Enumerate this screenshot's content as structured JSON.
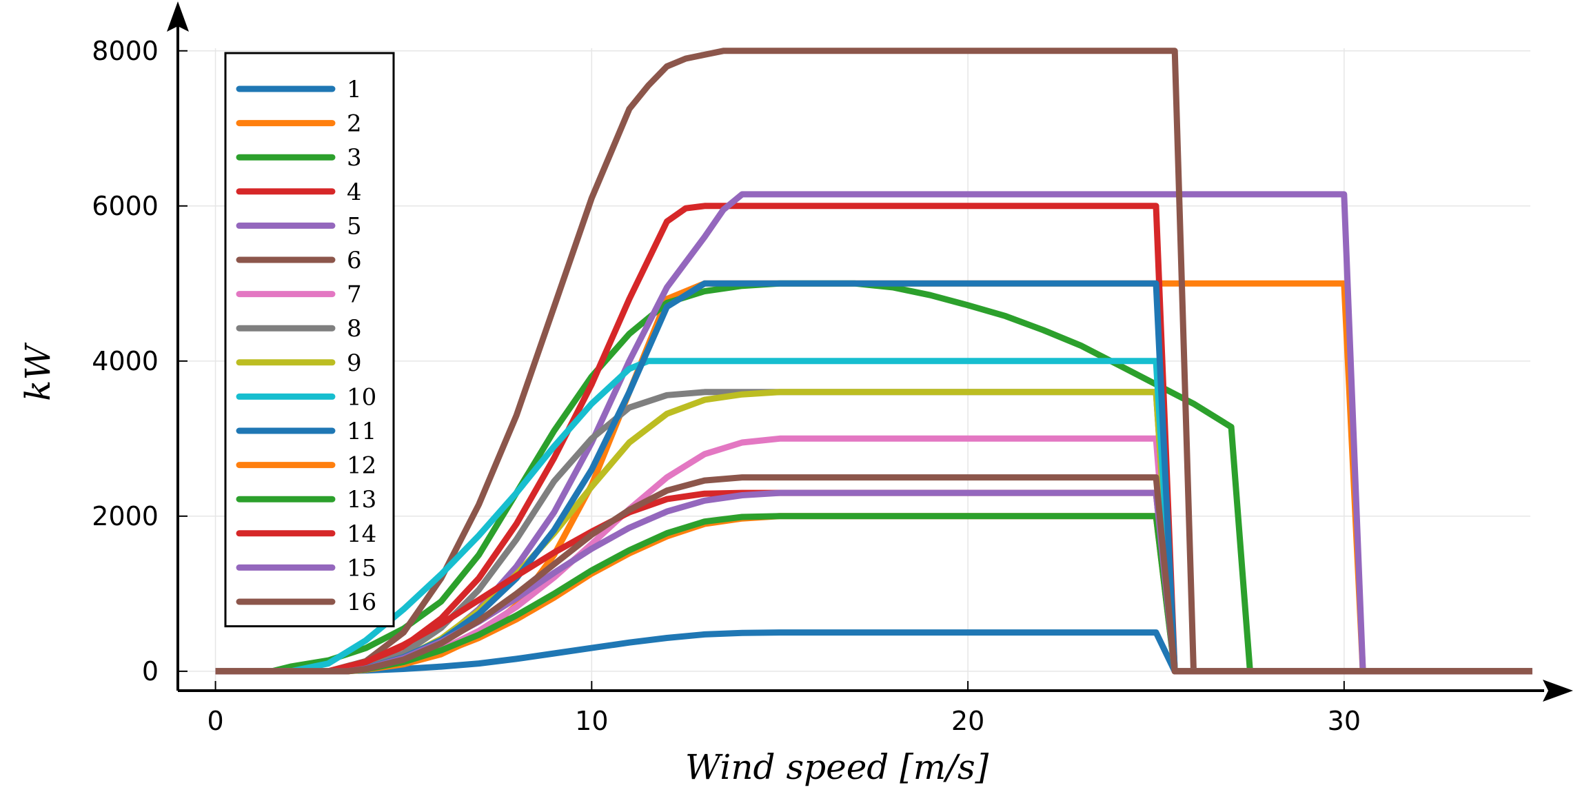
{
  "chart_data": {
    "type": "line",
    "xlabel": "Wind speed [m/s]",
    "ylabel": "kW",
    "xlim": [
      -1,
      35.5
    ],
    "ylim": [
      -250,
      8300
    ],
    "xticks": [
      0,
      10,
      20,
      30
    ],
    "yticks": [
      0,
      2000,
      4000,
      6000,
      8000
    ],
    "xtick_labels": [
      "0",
      "10",
      "20",
      "30"
    ],
    "ytick_labels": [
      "0",
      "2000",
      "4000",
      "6000",
      "8000"
    ],
    "grid": true,
    "legend_position": "top-left",
    "series": [
      {
        "name": "1",
        "color": "#1f77b4",
        "points": [
          [
            0,
            0
          ],
          [
            3,
            0
          ],
          [
            4,
            10
          ],
          [
            5,
            30
          ],
          [
            6,
            60
          ],
          [
            7,
            100
          ],
          [
            8,
            160
          ],
          [
            9,
            230
          ],
          [
            10,
            300
          ],
          [
            11,
            370
          ],
          [
            12,
            430
          ],
          [
            13,
            475
          ],
          [
            14,
            495
          ],
          [
            15,
            500
          ],
          [
            25,
            500
          ],
          [
            25.5,
            0
          ],
          [
            35,
            0
          ]
        ]
      },
      {
        "name": "2",
        "color": "#ff7f0e",
        "points": [
          [
            0,
            0
          ],
          [
            3.5,
            0
          ],
          [
            4,
            20
          ],
          [
            5,
            90
          ],
          [
            6,
            220
          ],
          [
            7,
            450
          ],
          [
            8,
            850
          ],
          [
            9,
            1500
          ],
          [
            10,
            2400
          ],
          [
            11,
            3600
          ],
          [
            12,
            4800
          ],
          [
            13,
            5000
          ],
          [
            30,
            5000
          ],
          [
            30.5,
            0
          ],
          [
            35,
            0
          ]
        ]
      },
      {
        "name": "3",
        "color": "#2ca02c",
        "points": [
          [
            0,
            0
          ],
          [
            1.5,
            0
          ],
          [
            2,
            60
          ],
          [
            3,
            140
          ],
          [
            4,
            300
          ],
          [
            5,
            550
          ],
          [
            6,
            900
          ],
          [
            7,
            1500
          ],
          [
            8,
            2300
          ],
          [
            9,
            3100
          ],
          [
            10,
            3800
          ],
          [
            11,
            4350
          ],
          [
            12,
            4750
          ],
          [
            13,
            4900
          ],
          [
            14,
            4970
          ],
          [
            15,
            5000
          ],
          [
            17,
            5000
          ],
          [
            18,
            4950
          ],
          [
            19,
            4850
          ],
          [
            20,
            4720
          ],
          [
            21,
            4580
          ],
          [
            22,
            4400
          ],
          [
            23,
            4200
          ],
          [
            24,
            3950
          ],
          [
            25,
            3700
          ],
          [
            26,
            3450
          ],
          [
            27,
            3150
          ],
          [
            27.5,
            0
          ],
          [
            35,
            0
          ]
        ]
      },
      {
        "name": "4",
        "color": "#d62728",
        "points": [
          [
            0,
            0
          ],
          [
            3,
            0
          ],
          [
            4,
            100
          ],
          [
            5,
            320
          ],
          [
            6,
            680
          ],
          [
            7,
            1200
          ],
          [
            8,
            1900
          ],
          [
            9,
            2750
          ],
          [
            10,
            3700
          ],
          [
            11,
            4800
          ],
          [
            12,
            5800
          ],
          [
            12.5,
            5970
          ],
          [
            13,
            6000
          ],
          [
            25,
            6000
          ],
          [
            25.5,
            0
          ],
          [
            35,
            0
          ]
        ]
      },
      {
        "name": "5",
        "color": "#9467bd",
        "points": [
          [
            0,
            0
          ],
          [
            3.5,
            0
          ],
          [
            4,
            30
          ],
          [
            5,
            160
          ],
          [
            6,
            400
          ],
          [
            7,
            800
          ],
          [
            8,
            1350
          ],
          [
            9,
            2050
          ],
          [
            10,
            2950
          ],
          [
            11,
            4000
          ],
          [
            12,
            4950
          ],
          [
            13,
            5600
          ],
          [
            13.5,
            5950
          ],
          [
            14,
            6150
          ],
          [
            30,
            6150
          ],
          [
            30.5,
            0
          ],
          [
            35,
            0
          ]
        ]
      },
      {
        "name": "6",
        "color": "#8c564b",
        "points": [
          [
            0,
            0
          ],
          [
            3,
            0
          ],
          [
            4,
            130
          ],
          [
            5,
            500
          ],
          [
            6,
            1200
          ],
          [
            7,
            2150
          ],
          [
            8,
            3300
          ],
          [
            9,
            4700
          ],
          [
            10,
            6100
          ],
          [
            11,
            7250
          ],
          [
            11.5,
            7550
          ],
          [
            12,
            7800
          ],
          [
            12.5,
            7900
          ],
          [
            13,
            7950
          ],
          [
            13.5,
            8000
          ],
          [
            25.5,
            8000
          ],
          [
            26,
            0
          ],
          [
            35,
            0
          ]
        ]
      },
      {
        "name": "7",
        "color": "#e377c2",
        "points": [
          [
            0,
            0
          ],
          [
            3.5,
            0
          ],
          [
            4,
            20
          ],
          [
            5,
            110
          ],
          [
            6,
            280
          ],
          [
            7,
            520
          ],
          [
            8,
            830
          ],
          [
            9,
            1210
          ],
          [
            10,
            1640
          ],
          [
            11,
            2090
          ],
          [
            12,
            2500
          ],
          [
            13,
            2800
          ],
          [
            14,
            2950
          ],
          [
            15,
            3000
          ],
          [
            25,
            3000
          ],
          [
            25.5,
            0
          ],
          [
            35,
            0
          ]
        ]
      },
      {
        "name": "8",
        "color": "#7f7f7f",
        "points": [
          [
            0,
            0
          ],
          [
            3.5,
            0
          ],
          [
            4,
            40
          ],
          [
            5,
            230
          ],
          [
            6,
            560
          ],
          [
            7,
            1050
          ],
          [
            8,
            1700
          ],
          [
            9,
            2450
          ],
          [
            10,
            3000
          ],
          [
            11,
            3400
          ],
          [
            12,
            3560
          ],
          [
            13,
            3600
          ],
          [
            25,
            3600
          ],
          [
            25.5,
            0
          ],
          [
            35,
            0
          ]
        ]
      },
      {
        "name": "9",
        "color": "#bcbd22",
        "points": [
          [
            0,
            0
          ],
          [
            3.5,
            0
          ],
          [
            4,
            30
          ],
          [
            5,
            170
          ],
          [
            6,
            420
          ],
          [
            7,
            780
          ],
          [
            8,
            1250
          ],
          [
            9,
            1780
          ],
          [
            10,
            2380
          ],
          [
            11,
            2950
          ],
          [
            12,
            3320
          ],
          [
            13,
            3500
          ],
          [
            14,
            3570
          ],
          [
            15,
            3600
          ],
          [
            25,
            3600
          ],
          [
            25.5,
            0
          ],
          [
            35,
            0
          ]
        ]
      },
      {
        "name": "10",
        "color": "#17becf",
        "points": [
          [
            0,
            0
          ],
          [
            2,
            0
          ],
          [
            3,
            100
          ],
          [
            4,
            400
          ],
          [
            5,
            800
          ],
          [
            6,
            1250
          ],
          [
            7,
            1750
          ],
          [
            8,
            2300
          ],
          [
            9,
            2900
          ],
          [
            10,
            3450
          ],
          [
            11,
            3900
          ],
          [
            11.5,
            4000
          ],
          [
            25,
            4000
          ],
          [
            25.5,
            0
          ],
          [
            35,
            0
          ]
        ]
      },
      {
        "name": "11",
        "color": "#1f77b4",
        "points": [
          [
            0,
            0
          ],
          [
            3.5,
            0
          ],
          [
            4,
            40
          ],
          [
            5,
            180
          ],
          [
            6,
            400
          ],
          [
            7,
            740
          ],
          [
            8,
            1200
          ],
          [
            9,
            1820
          ],
          [
            10,
            2600
          ],
          [
            11,
            3600
          ],
          [
            12,
            4700
          ],
          [
            13,
            5000
          ],
          [
            25,
            5000
          ],
          [
            25.5,
            0
          ],
          [
            35,
            0
          ]
        ]
      },
      {
        "name": "12",
        "color": "#ff7f0e",
        "points": [
          [
            0,
            0
          ],
          [
            3.5,
            0
          ],
          [
            4,
            20
          ],
          [
            5,
            100
          ],
          [
            6,
            240
          ],
          [
            7,
            430
          ],
          [
            8,
            670
          ],
          [
            9,
            950
          ],
          [
            10,
            1260
          ],
          [
            11,
            1520
          ],
          [
            12,
            1740
          ],
          [
            13,
            1900
          ],
          [
            14,
            1970
          ],
          [
            15,
            2000
          ],
          [
            25,
            2000
          ],
          [
            25.5,
            0
          ],
          [
            35,
            0
          ]
        ]
      },
      {
        "name": "13",
        "color": "#2ca02c",
        "points": [
          [
            0,
            0
          ],
          [
            3.5,
            0
          ],
          [
            4,
            25
          ],
          [
            5,
            120
          ],
          [
            6,
            270
          ],
          [
            7,
            470
          ],
          [
            8,
            720
          ],
          [
            9,
            1000
          ],
          [
            10,
            1300
          ],
          [
            11,
            1560
          ],
          [
            12,
            1780
          ],
          [
            13,
            1930
          ],
          [
            14,
            1990
          ],
          [
            15,
            2000
          ],
          [
            25,
            2000
          ],
          [
            25.5,
            0
          ],
          [
            35,
            0
          ]
        ]
      },
      {
        "name": "14",
        "color": "#d62728",
        "points": [
          [
            0,
            0
          ],
          [
            3,
            0
          ],
          [
            4,
            120
          ],
          [
            5,
            340
          ],
          [
            6,
            610
          ],
          [
            7,
            920
          ],
          [
            8,
            1230
          ],
          [
            9,
            1530
          ],
          [
            10,
            1800
          ],
          [
            11,
            2050
          ],
          [
            12,
            2220
          ],
          [
            13,
            2290
          ],
          [
            14,
            2300
          ],
          [
            25,
            2300
          ],
          [
            25.5,
            0
          ],
          [
            35,
            0
          ]
        ]
      },
      {
        "name": "15",
        "color": "#9467bd",
        "points": [
          [
            0,
            0
          ],
          [
            3.5,
            0
          ],
          [
            4,
            35
          ],
          [
            5,
            170
          ],
          [
            6,
            380
          ],
          [
            7,
            640
          ],
          [
            8,
            940
          ],
          [
            9,
            1270
          ],
          [
            10,
            1580
          ],
          [
            11,
            1850
          ],
          [
            12,
            2060
          ],
          [
            13,
            2200
          ],
          [
            14,
            2270
          ],
          [
            15,
            2300
          ],
          [
            25,
            2300
          ],
          [
            25.5,
            0
          ],
          [
            35,
            0
          ]
        ]
      },
      {
        "name": "16",
        "color": "#8c564b",
        "points": [
          [
            0,
            0
          ],
          [
            3.5,
            0
          ],
          [
            4,
            30
          ],
          [
            5,
            150
          ],
          [
            6,
            360
          ],
          [
            7,
            650
          ],
          [
            8,
            1000
          ],
          [
            9,
            1380
          ],
          [
            10,
            1760
          ],
          [
            11,
            2080
          ],
          [
            12,
            2330
          ],
          [
            13,
            2460
          ],
          [
            14,
            2500
          ],
          [
            25,
            2500
          ],
          [
            25.5,
            0
          ],
          [
            35,
            0
          ]
        ]
      }
    ]
  }
}
